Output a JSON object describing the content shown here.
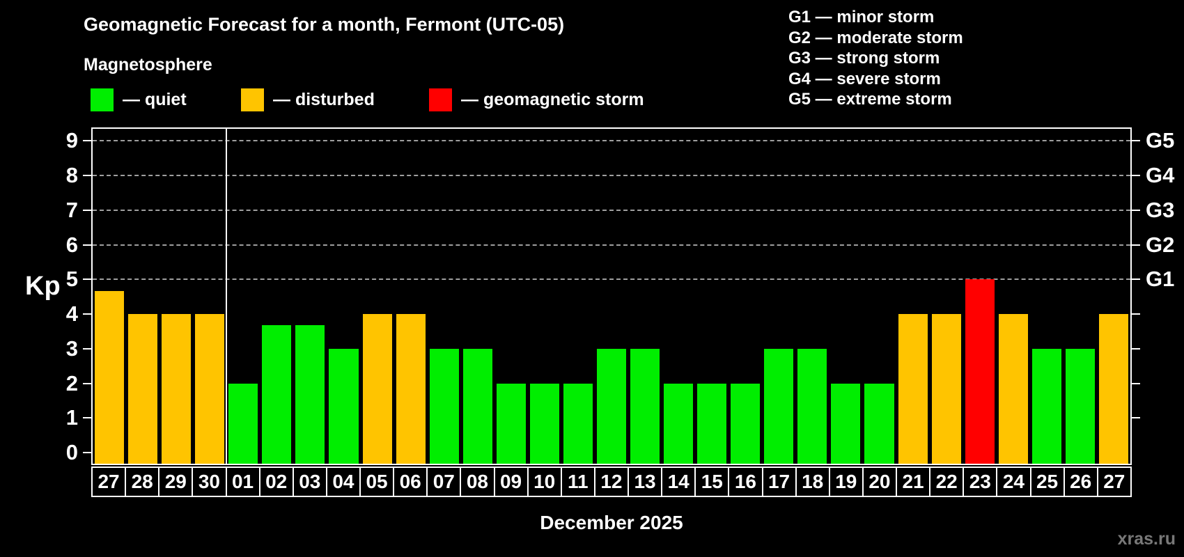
{
  "title": "Geomagnetic Forecast for a month, Fermont (UTC-05)",
  "subtitle": "Magnetosphere",
  "legend": {
    "quiet": "— quiet",
    "disturbed": "— disturbed",
    "storm": "— geomagnetic storm"
  },
  "g_legend": {
    "items": [
      "G1 — minor storm",
      "G2 — moderate storm",
      "G3 — strong storm",
      "G4 — severe storm",
      "G5 — extreme storm"
    ]
  },
  "watermark": "xras.ru",
  "colors": {
    "quiet": "#00EE00",
    "disturbed": "#FFC400",
    "storm": "#FF0000",
    "grid": "#9f9f9f",
    "axis": "#FFFFFF",
    "background": "#000000"
  },
  "chart_data": {
    "type": "bar",
    "title": "Geomagnetic Forecast for a month, Fermont (UTC-05)",
    "subtitle": "Magnetosphere",
    "ylabel": "Kp",
    "month_label": "December 2025",
    "ylim": [
      0,
      9
    ],
    "yticks": [
      0,
      1,
      2,
      3,
      4,
      5,
      6,
      7,
      8,
      9
    ],
    "gridlines_kp": [
      5,
      6,
      7,
      8,
      9
    ],
    "grid": "dashed-top-half",
    "legend_position": "top",
    "right_axis_labels": [
      {
        "kp": 9,
        "label": "G5"
      },
      {
        "kp": 8,
        "label": "G4"
      },
      {
        "kp": 7,
        "label": "G3"
      },
      {
        "kp": 6,
        "label": "G2"
      },
      {
        "kp": 5,
        "label": "G1"
      }
    ],
    "right_axis_ticks_kp": [
      1,
      2,
      3,
      4,
      5,
      6,
      7,
      8,
      9
    ],
    "month_separator_after": 4,
    "bars": [
      {
        "date": "27",
        "kp": 4.67,
        "status": "disturbed"
      },
      {
        "date": "28",
        "kp": 4,
        "status": "disturbed"
      },
      {
        "date": "29",
        "kp": 4,
        "status": "disturbed"
      },
      {
        "date": "30",
        "kp": 4,
        "status": "disturbed"
      },
      {
        "date": "01",
        "kp": 2,
        "status": "quiet"
      },
      {
        "date": "02",
        "kp": 3.67,
        "status": "quiet"
      },
      {
        "date": "03",
        "kp": 3.67,
        "status": "quiet"
      },
      {
        "date": "04",
        "kp": 3,
        "status": "quiet"
      },
      {
        "date": "05",
        "kp": 4,
        "status": "disturbed"
      },
      {
        "date": "06",
        "kp": 4,
        "status": "disturbed"
      },
      {
        "date": "07",
        "kp": 3,
        "status": "quiet"
      },
      {
        "date": "08",
        "kp": 3,
        "status": "quiet"
      },
      {
        "date": "09",
        "kp": 2,
        "status": "quiet"
      },
      {
        "date": "10",
        "kp": 2,
        "status": "quiet"
      },
      {
        "date": "11",
        "kp": 2,
        "status": "quiet"
      },
      {
        "date": "12",
        "kp": 3,
        "status": "quiet"
      },
      {
        "date": "13",
        "kp": 3,
        "status": "quiet"
      },
      {
        "date": "14",
        "kp": 2,
        "status": "quiet"
      },
      {
        "date": "15",
        "kp": 2,
        "status": "quiet"
      },
      {
        "date": "16",
        "kp": 2,
        "status": "quiet"
      },
      {
        "date": "17",
        "kp": 3,
        "status": "quiet"
      },
      {
        "date": "18",
        "kp": 3,
        "status": "quiet"
      },
      {
        "date": "19",
        "kp": 2,
        "status": "quiet"
      },
      {
        "date": "20",
        "kp": 2,
        "status": "quiet"
      },
      {
        "date": "21",
        "kp": 4,
        "status": "disturbed"
      },
      {
        "date": "22",
        "kp": 4,
        "status": "disturbed"
      },
      {
        "date": "23",
        "kp": 5,
        "status": "storm"
      },
      {
        "date": "24",
        "kp": 4,
        "status": "disturbed"
      },
      {
        "date": "25",
        "kp": 3,
        "status": "quiet"
      },
      {
        "date": "26",
        "kp": 3,
        "status": "quiet"
      },
      {
        "date": "27",
        "kp": 4,
        "status": "disturbed"
      }
    ]
  }
}
